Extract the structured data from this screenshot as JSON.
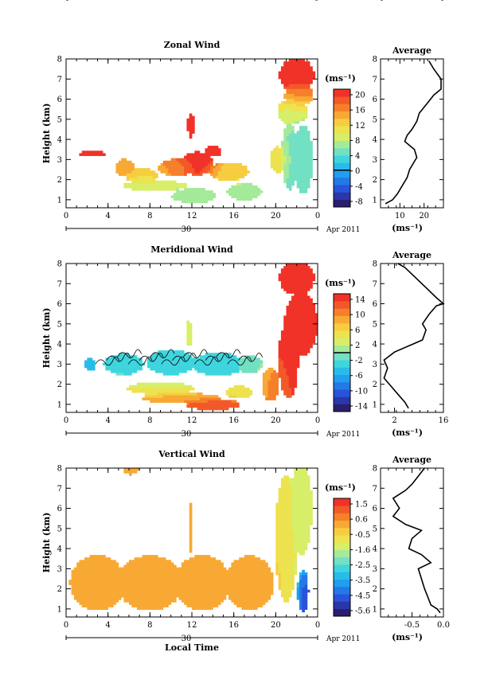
{
  "chart_data": [
    {
      "id": "zonal",
      "type": "heatmap",
      "title": "Zonal Wind",
      "ylabel": "Height (km)",
      "xlabel": "",
      "x_ticks": [
        "0",
        "4",
        "8",
        "12",
        "16",
        "20",
        "0"
      ],
      "y_ticks": [
        "1",
        "2",
        "3",
        "4",
        "5",
        "6",
        "7",
        "8"
      ],
      "xlim": [
        0,
        24
      ],
      "ylim": [
        0.6,
        8
      ],
      "date_day": "30",
      "date_label": "Apr 2011",
      "unit": "(ms⁻¹)",
      "colorbar_ticks": [
        "20",
        "16",
        "12",
        "8",
        "4",
        "0",
        "-4",
        "-8"
      ],
      "colorbar_range": [
        -10,
        22
      ],
      "colorbar_zero_line": 0,
      "blobs": [
        {
          "x": 2.5,
          "y": 3.3,
          "rx": 1.2,
          "ry": 0.15,
          "v": 22
        },
        {
          "x": 5.6,
          "y": 2.6,
          "rx": 0.8,
          "ry": 0.4,
          "v": 16
        },
        {
          "x": 7.2,
          "y": 2.2,
          "rx": 1.5,
          "ry": 0.35,
          "v": 12
        },
        {
          "x": 8.5,
          "y": 1.7,
          "rx": 3.0,
          "ry": 0.25,
          "v": 9
        },
        {
          "x": 12.2,
          "y": 1.2,
          "rx": 2.0,
          "ry": 0.35,
          "v": 6
        },
        {
          "x": 10.5,
          "y": 2.6,
          "rx": 1.6,
          "ry": 0.4,
          "v": 16
        },
        {
          "x": 12.5,
          "y": 2.8,
          "rx": 1.5,
          "ry": 0.55,
          "v": 22
        },
        {
          "x": 11.9,
          "y": 4.7,
          "rx": 0.3,
          "ry": 0.6,
          "v": 22
        },
        {
          "x": 14.0,
          "y": 3.4,
          "rx": 0.8,
          "ry": 0.25,
          "v": 22
        },
        {
          "x": 15.5,
          "y": 2.4,
          "rx": 1.8,
          "ry": 0.45,
          "v": 13
        },
        {
          "x": 17.0,
          "y": 1.4,
          "rx": 1.6,
          "ry": 0.4,
          "v": 7
        },
        {
          "x": 20.2,
          "y": 3.0,
          "rx": 0.7,
          "ry": 0.6,
          "v": 12
        },
        {
          "x": 21.3,
          "y": 3.2,
          "rx": 0.7,
          "ry": 1.6,
          "v": 6
        },
        {
          "x": 22.6,
          "y": 3.0,
          "rx": 0.9,
          "ry": 1.6,
          "v": 4
        },
        {
          "x": 21.6,
          "y": 5.4,
          "rx": 1.4,
          "ry": 0.6,
          "v": 10
        },
        {
          "x": 22.2,
          "y": 6.2,
          "rx": 1.3,
          "ry": 0.5,
          "v": 16
        },
        {
          "x": 22.0,
          "y": 7.2,
          "rx": 1.6,
          "ry": 0.8,
          "v": 22
        }
      ],
      "avg_title": "Average",
      "avg_xlim": [
        2,
        28
      ],
      "avg_x_ticks": [
        10,
        20
      ],
      "avg_unit": "(ms⁻¹)",
      "avg_profile": [
        [
          4,
          0.8
        ],
        [
          7,
          1.0
        ],
        [
          9,
          1.3
        ],
        [
          11,
          1.7
        ],
        [
          13,
          2.1
        ],
        [
          14,
          2.5
        ],
        [
          16,
          2.9
        ],
        [
          17,
          3.1
        ],
        [
          16,
          3.5
        ],
        [
          14,
          3.7
        ],
        [
          12,
          3.9
        ],
        [
          13,
          4.2
        ],
        [
          15,
          4.5
        ],
        [
          17,
          4.9
        ],
        [
          18,
          5.3
        ],
        [
          20,
          5.6
        ],
        [
          22,
          5.9
        ],
        [
          24,
          6.2
        ],
        [
          27,
          6.5
        ],
        [
          27,
          7.0
        ],
        [
          24,
          7.5
        ],
        [
          22,
          7.9
        ]
      ]
    },
    {
      "id": "meridional",
      "type": "heatmap",
      "title": "Meridional Wind",
      "ylabel": "Height (km)",
      "xlabel": "",
      "x_ticks": [
        "0",
        "4",
        "8",
        "12",
        "16",
        "20",
        "0"
      ],
      "y_ticks": [
        "1",
        "2",
        "3",
        "4",
        "5",
        "6",
        "7",
        "8"
      ],
      "xlim": [
        0,
        24
      ],
      "ylim": [
        0.6,
        8
      ],
      "date_day": "30",
      "date_label": "Apr 2011",
      "unit": "(ms⁻¹)",
      "colorbar_ticks": [
        "14",
        "10",
        "6",
        "2",
        "-2",
        "-6",
        "-10",
        "-14"
      ],
      "colorbar_range": [
        -16,
        16
      ],
      "colorbar_zero_line": 0,
      "blobs": [
        {
          "x": 2.3,
          "y": 3.0,
          "rx": 0.5,
          "ry": 0.3,
          "v": -6
        },
        {
          "x": 5.5,
          "y": 3.0,
          "rx": 1.8,
          "ry": 0.5,
          "v": -2
        },
        {
          "x": 10.0,
          "y": 3.1,
          "rx": 2.2,
          "ry": 0.6,
          "v": -3
        },
        {
          "x": 14.5,
          "y": 3.0,
          "rx": 2.3,
          "ry": 0.55,
          "v": -3
        },
        {
          "x": 17.5,
          "y": 3.0,
          "rx": 1.2,
          "ry": 0.4,
          "v": -1
        },
        {
          "x": 9.0,
          "y": 1.8,
          "rx": 3.0,
          "ry": 0.3,
          "v": 4
        },
        {
          "x": 11.0,
          "y": 1.3,
          "rx": 3.5,
          "ry": 0.25,
          "v": 9
        },
        {
          "x": 14.0,
          "y": 1.0,
          "rx": 2.5,
          "ry": 0.25,
          "v": 14
        },
        {
          "x": 16.5,
          "y": 1.6,
          "rx": 1.2,
          "ry": 0.3,
          "v": 5
        },
        {
          "x": 19.5,
          "y": 2.0,
          "rx": 0.8,
          "ry": 0.8,
          "v": 10
        },
        {
          "x": 21.2,
          "y": 3.2,
          "rx": 0.9,
          "ry": 1.8,
          "v": 14
        },
        {
          "x": 22.4,
          "y": 5.0,
          "rx": 1.5,
          "ry": 1.5,
          "v": 16
        },
        {
          "x": 22.0,
          "y": 7.3,
          "rx": 1.6,
          "ry": 0.8,
          "v": 14
        },
        {
          "x": 11.7,
          "y": 4.5,
          "rx": 0.3,
          "ry": 0.6,
          "v": 3
        }
      ],
      "avg_title": "Average",
      "avg_xlim": [
        -2,
        16
      ],
      "avg_x_ticks": [
        2,
        16
      ],
      "avg_unit": "(ms⁻¹)",
      "avg_profile": [
        [
          6,
          0.8
        ],
        [
          5,
          1.1
        ],
        [
          3,
          1.5
        ],
        [
          1,
          1.9
        ],
        [
          -1,
          2.3
        ],
        [
          0,
          2.8
        ],
        [
          -1,
          3.2
        ],
        [
          2,
          3.6
        ],
        [
          6,
          3.9
        ],
        [
          10,
          4.2
        ],
        [
          11,
          4.7
        ],
        [
          10,
          5.0
        ],
        [
          12,
          5.5
        ],
        [
          14,
          5.9
        ],
        [
          16,
          6.0
        ],
        [
          14,
          6.3
        ],
        [
          11,
          6.8
        ],
        [
          8,
          7.3
        ],
        [
          5,
          7.8
        ],
        [
          3,
          8.0
        ]
      ]
    },
    {
      "id": "vertical",
      "type": "heatmap",
      "title": "Vertical Wind",
      "ylabel": "Height (km)",
      "xlabel": "Local Time",
      "x_ticks": [
        "0",
        "4",
        "8",
        "12",
        "16",
        "20",
        "0"
      ],
      "y_ticks": [
        "1",
        "2",
        "3",
        "4",
        "5",
        "6",
        "7",
        "8"
      ],
      "xlim": [
        0,
        24
      ],
      "ylim": [
        0.6,
        8
      ],
      "date_day": "30",
      "date_label": "Apr 2011",
      "unit": "(ms⁻¹)",
      "colorbar_ticks": [
        "1.5",
        "0.6",
        "-0.5",
        "-1.6",
        "-2.5",
        "-3.5",
        "-4.5",
        "-5.6"
      ],
      "colorbar_range": [
        -6,
        2
      ],
      "colorbar_zero_line": null,
      "blobs": [
        {
          "x": 3.0,
          "y": 2.3,
          "rx": 2.5,
          "ry": 1.3,
          "v": 0.4
        },
        {
          "x": 8.0,
          "y": 2.3,
          "rx": 3.0,
          "ry": 1.3,
          "v": 0.5
        },
        {
          "x": 13.0,
          "y": 2.3,
          "rx": 2.5,
          "ry": 1.3,
          "v": 0.4
        },
        {
          "x": 17.5,
          "y": 2.3,
          "rx": 2.2,
          "ry": 1.3,
          "v": 0.5
        },
        {
          "x": 11.9,
          "y": 5.0,
          "rx": 0.2,
          "ry": 1.2,
          "v": 0.0
        },
        {
          "x": 21.0,
          "y": 4.5,
          "rx": 1.0,
          "ry": 3.0,
          "v": -0.8
        },
        {
          "x": 22.4,
          "y": 6.0,
          "rx": 1.0,
          "ry": 2.2,
          "v": -1.3
        },
        {
          "x": 22.6,
          "y": 1.9,
          "rx": 0.5,
          "ry": 1.0,
          "v": -4.8
        },
        {
          "x": 6.2,
          "y": 7.9,
          "rx": 0.7,
          "ry": 0.2,
          "v": 0.3
        }
      ],
      "avg_title": "Average",
      "avg_xlim": [
        -1.0,
        0.0
      ],
      "avg_x_ticks": [
        -0.5,
        0.0
      ],
      "avg_tick_labels": [
        "-0.5",
        "0.0"
      ],
      "avg_unit": "(ms⁻¹)",
      "avg_profile": [
        [
          -0.05,
          0.8
        ],
        [
          -0.1,
          1.0
        ],
        [
          -0.2,
          1.2
        ],
        [
          -0.25,
          1.6
        ],
        [
          -0.3,
          2.0
        ],
        [
          -0.35,
          2.5
        ],
        [
          -0.4,
          3.0
        ],
        [
          -0.2,
          3.3
        ],
        [
          -0.35,
          3.7
        ],
        [
          -0.55,
          4.0
        ],
        [
          -0.5,
          4.5
        ],
        [
          -0.35,
          4.9
        ],
        [
          -0.6,
          5.2
        ],
        [
          -0.8,
          5.6
        ],
        [
          -0.7,
          6.0
        ],
        [
          -0.8,
          6.5
        ],
        [
          -0.6,
          6.9
        ],
        [
          -0.5,
          7.2
        ],
        [
          -0.4,
          7.6
        ],
        [
          -0.3,
          8.0
        ]
      ]
    }
  ]
}
